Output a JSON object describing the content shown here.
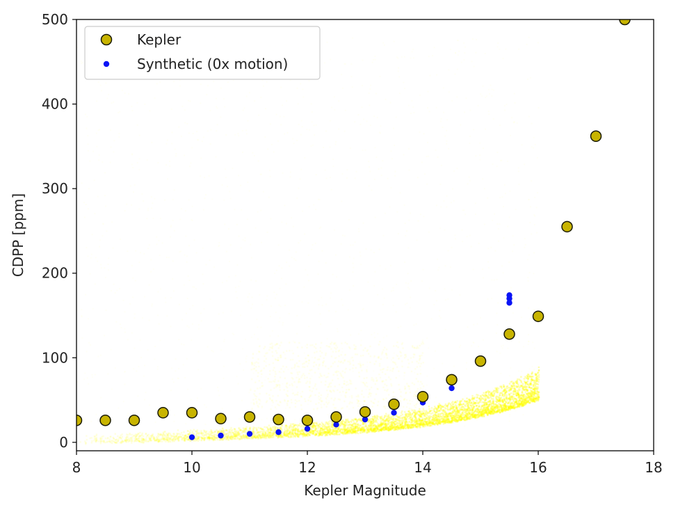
{
  "chart_data": {
    "type": "scatter",
    "xlabel": "Kepler Magnitude",
    "ylabel": "CDPP [ppm]",
    "xlim": [
      8,
      18
    ],
    "ylim": [
      -10,
      500
    ],
    "xticks": [
      "8",
      "10",
      "12",
      "14",
      "16",
      "18"
    ],
    "yticks": [
      "0",
      "100",
      "200",
      "300",
      "400",
      "500"
    ],
    "legend_position": "top-left",
    "grid": false,
    "colors": {
      "kepler_fill": "#c8b400",
      "kepler_edge": "#1a1a00",
      "synthetic": "#0a14f5",
      "density": "#ffff00"
    },
    "series": [
      {
        "name": "Kepler",
        "marker": "circle-large",
        "x": [
          8,
          8.5,
          9,
          9.5,
          10,
          10.5,
          11,
          11.5,
          12,
          12.5,
          13,
          13.5,
          14,
          14.5,
          15,
          15.5,
          16,
          16.5,
          17,
          17.5
        ],
        "y": [
          26,
          26,
          26,
          35,
          35,
          28,
          30,
          27,
          26,
          30,
          36,
          45,
          54,
          74,
          96,
          128,
          149,
          255,
          362,
          500
        ]
      },
      {
        "name": "Synthetic (0x motion)",
        "marker": "circle-small",
        "x": [
          10,
          10.5,
          11,
          11.5,
          12,
          12.5,
          13,
          13.5,
          14,
          14.5,
          15,
          15,
          15.5,
          15.5,
          15.5
        ],
        "y": [
          6,
          8,
          10,
          12,
          16,
          21,
          27,
          35,
          47,
          64,
          94,
          99,
          165,
          170,
          174
        ]
      }
    ]
  }
}
